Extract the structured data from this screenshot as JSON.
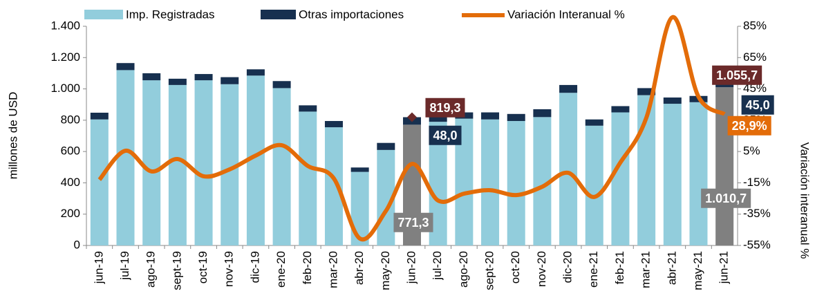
{
  "chart_data": {
    "type": "bar",
    "y_label": "millones de  USD",
    "y2_label": "Variación  interanual %",
    "categories": [
      "jun-19",
      "jul-19",
      "ago-19",
      "sept-19",
      "oct-19",
      "nov-19",
      "dic-19",
      "ene-20",
      "feb-20",
      "mar-20",
      "abr-20",
      "may-20",
      "jun-20",
      "jul-20",
      "ago-20",
      "sept-20",
      "oct-20",
      "nov-20",
      "dic-20",
      "ene-21",
      "feb-21",
      "mar-21",
      "abr-21",
      "may-21",
      "jun-21"
    ],
    "series": [
      {
        "name": "Imp. Registradas",
        "type": "bar",
        "color": "#92cddc",
        "colors": [
          "#92cddc",
          "#92cddc",
          "#92cddc",
          "#92cddc",
          "#92cddc",
          "#92cddc",
          "#92cddc",
          "#92cddc",
          "#92cddc",
          "#92cddc",
          "#92cddc",
          "#92cddc",
          "#808080",
          "#92cddc",
          "#92cddc",
          "#92cddc",
          "#92cddc",
          "#92cddc",
          "#92cddc",
          "#92cddc",
          "#92cddc",
          "#92cddc",
          "#92cddc",
          "#92cddc",
          "#808080"
        ],
        "values": [
          805,
          1120,
          1055,
          1025,
          1055,
          1030,
          1085,
          1005,
          855,
          755,
          470,
          610,
          771.3,
          790,
          810,
          805,
          795,
          820,
          975,
          765,
          850,
          960,
          905,
          915,
          1010.7
        ],
        "value_labels": [
          null,
          null,
          null,
          null,
          null,
          null,
          null,
          null,
          null,
          null,
          null,
          null,
          "771,3",
          null,
          null,
          null,
          null,
          null,
          null,
          null,
          null,
          null,
          null,
          null,
          "1.010,7"
        ]
      },
      {
        "name": "Otras importaciones",
        "type": "bar",
        "color": "#17304f",
        "values": [
          43,
          45,
          45,
          40,
          40,
          45,
          40,
          45,
          40,
          40,
          28,
          45,
          48.0,
          42,
          40,
          45,
          45,
          50,
          50,
          40,
          40,
          45,
          40,
          40,
          45.0
        ],
        "value_labels": [
          null,
          null,
          null,
          null,
          null,
          null,
          null,
          null,
          null,
          null,
          null,
          null,
          "48,0",
          null,
          null,
          null,
          null,
          null,
          null,
          null,
          null,
          null,
          null,
          null,
          "45,0"
        ]
      },
      {
        "name": "Variación Interanual %",
        "type": "line",
        "axis": "y2",
        "color": "#e36c09",
        "values": [
          -13,
          5.5,
          -7.7,
          0.2,
          -10.8,
          -6.4,
          2.4,
          9,
          -4.2,
          -12.2,
          -50.6,
          -32.9,
          -2.9,
          -26.3,
          -21.9,
          -19.7,
          -22.8,
          -17.5,
          -8.6,
          -24,
          -2,
          26.7,
          90.8,
          40,
          28.9
        ],
        "value_labels": [
          null,
          null,
          null,
          null,
          null,
          null,
          null,
          null,
          null,
          null,
          null,
          null,
          null,
          null,
          null,
          null,
          null,
          null,
          null,
          null,
          null,
          null,
          null,
          null,
          "28,9%"
        ]
      }
    ],
    "totals": [
      {
        "index": 12,
        "value": 819.3,
        "label": "819,3"
      },
      {
        "index": 24,
        "value": 1055.7,
        "label": "1.055,7"
      }
    ],
    "total_color": "#6b2a2a",
    "ylim": [
      0,
      1400
    ],
    "yticks": [
      0,
      200,
      400,
      600,
      800,
      {
        "value": 1000,
        "label": "1.000"
      },
      {
        "value": 1200,
        "label": "1.200"
      },
      {
        "value": 1400,
        "label": "1.400"
      }
    ],
    "y2lim": [
      -55,
      85
    ],
    "y2ticks": [
      {
        "value": -55,
        "label": "-55%"
      },
      {
        "value": -35,
        "label": "-35%"
      },
      {
        "value": -15,
        "label": "-15%"
      },
      {
        "value": 5,
        "label": "5%"
      },
      {
        "value": 25,
        "label": "25%"
      },
      {
        "value": 45,
        "label": "45%"
      },
      {
        "value": 65,
        "label": "65%"
      },
      {
        "value": 85,
        "label": "85%"
      }
    ]
  }
}
